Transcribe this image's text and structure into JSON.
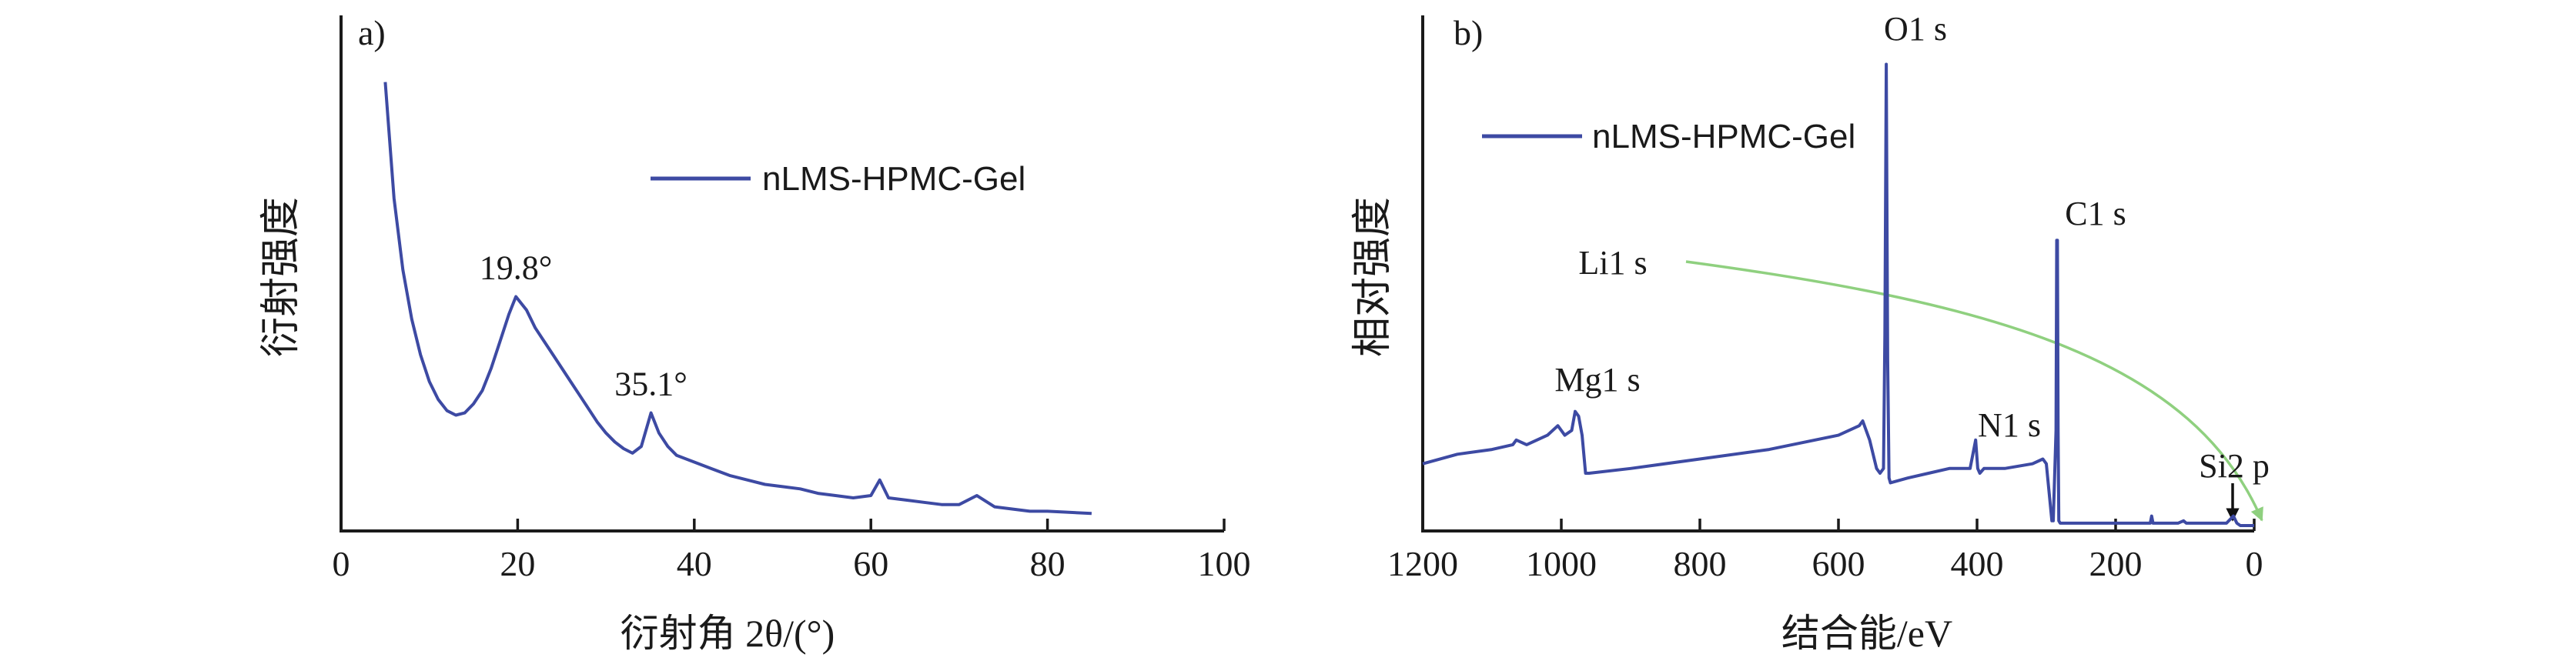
{
  "chart_data": [
    {
      "panel_label": "a)",
      "type": "line",
      "xlabel": "衍射角 2θ/(°)",
      "ylabel": "衍射强度",
      "xlim": [
        0,
        100
      ],
      "ylim": [
        0,
        1
      ],
      "xticks": [
        "0",
        "20",
        "40",
        "60",
        "80",
        "100"
      ],
      "legend": {
        "label": "nLMS-HPMC-Gel",
        "placement": "top-right",
        "color": "#3d4aa3"
      },
      "series": [
        {
          "name": "nLMS-HPMC-Gel",
          "color": "#3d4aa3",
          "x": [
            5,
            6,
            7,
            8,
            9,
            10,
            11,
            12,
            13,
            14,
            15,
            16,
            17,
            18,
            19,
            19.8,
            21,
            22,
            23,
            24,
            25,
            26,
            27,
            28,
            29,
            30,
            31,
            32,
            33,
            34,
            35.1,
            36,
            37,
            38,
            40,
            42,
            44,
            46,
            48,
            50,
            52,
            54,
            56,
            58,
            60,
            61,
            62,
            64,
            66,
            68,
            70,
            72,
            74,
            76,
            78,
            80,
            82,
            85
          ],
          "y": [
            0.98,
            0.72,
            0.56,
            0.45,
            0.37,
            0.31,
            0.27,
            0.245,
            0.235,
            0.24,
            0.26,
            0.29,
            0.34,
            0.4,
            0.46,
            0.5,
            0.47,
            0.43,
            0.4,
            0.37,
            0.34,
            0.31,
            0.28,
            0.25,
            0.22,
            0.195,
            0.175,
            0.16,
            0.15,
            0.165,
            0.24,
            0.195,
            0.165,
            0.145,
            0.13,
            0.115,
            0.1,
            0.09,
            0.08,
            0.075,
            0.07,
            0.06,
            0.055,
            0.05,
            0.055,
            0.09,
            0.05,
            0.045,
            0.04,
            0.035,
            0.035,
            0.055,
            0.03,
            0.025,
            0.02,
            0.02,
            0.018,
            0.015
          ]
        }
      ],
      "annotations": [
        {
          "text": "19.8°",
          "x": 19.8,
          "y": 0.54
        },
        {
          "text": "35.1°",
          "x": 35.1,
          "y": 0.28
        }
      ]
    },
    {
      "panel_label": "b)",
      "type": "line",
      "xlabel": "结合能/eV",
      "ylabel": "相对强度",
      "xlim": [
        1200,
        0
      ],
      "ylim": [
        0,
        1
      ],
      "xticks": [
        "1200",
        "1000",
        "800",
        "600",
        "400",
        "200",
        "0"
      ],
      "legend": {
        "label": "nLMS-HPMC-Gel",
        "placement": "top-left",
        "color": "#3d4aa3"
      },
      "series": [
        {
          "name": "nLMS-HPMC-Gel",
          "color": "#3d4aa3",
          "x": [
            1200,
            1150,
            1100,
            1070,
            1065,
            1050,
            1020,
            1005,
            995,
            985,
            980,
            975,
            970,
            965,
            960,
            900,
            800,
            700,
            600,
            570,
            565,
            560,
            555,
            545,
            540,
            535,
            533,
            531,
            529,
            527,
            525,
            500,
            470,
            440,
            410,
            402,
            399,
            396,
            390,
            360,
            320,
            305,
            300,
            292,
            290,
            286,
            285,
            284,
            283,
            282,
            280,
            275,
            250,
            200,
            150,
            148,
            146,
            110,
            102,
            98,
            80,
            60,
            40,
            30,
            25,
            20,
            0
          ],
          "y": [
            0.13,
            0.15,
            0.16,
            0.17,
            0.18,
            0.17,
            0.19,
            0.21,
            0.19,
            0.2,
            0.24,
            0.23,
            0.19,
            0.11,
            0.11,
            0.12,
            0.14,
            0.16,
            0.19,
            0.21,
            0.22,
            0.2,
            0.18,
            0.12,
            0.11,
            0.12,
            0.4,
            0.97,
            0.35,
            0.1,
            0.09,
            0.1,
            0.11,
            0.12,
            0.12,
            0.18,
            0.12,
            0.11,
            0.12,
            0.12,
            0.13,
            0.14,
            0.13,
            0.01,
            0.01,
            0.2,
            0.6,
            0.6,
            0.2,
            0.01,
            0.005,
            0.005,
            0.005,
            0.005,
            0.005,
            0.02,
            0.005,
            0.005,
            0.01,
            0.005,
            0.005,
            0.005,
            0.005,
            0.02,
            0.005,
            0.0,
            0.0
          ]
        }
      ],
      "annotations": [
        {
          "text": "O1 s"
        },
        {
          "text": "C1 s"
        },
        {
          "text": "Li1 s"
        },
        {
          "text": "Mg1 s"
        },
        {
          "text": "N1 s"
        },
        {
          "text": "Si2 p"
        }
      ],
      "arrow_colors": {
        "li": "#8fd07f",
        "si": "#111111"
      }
    }
  ]
}
